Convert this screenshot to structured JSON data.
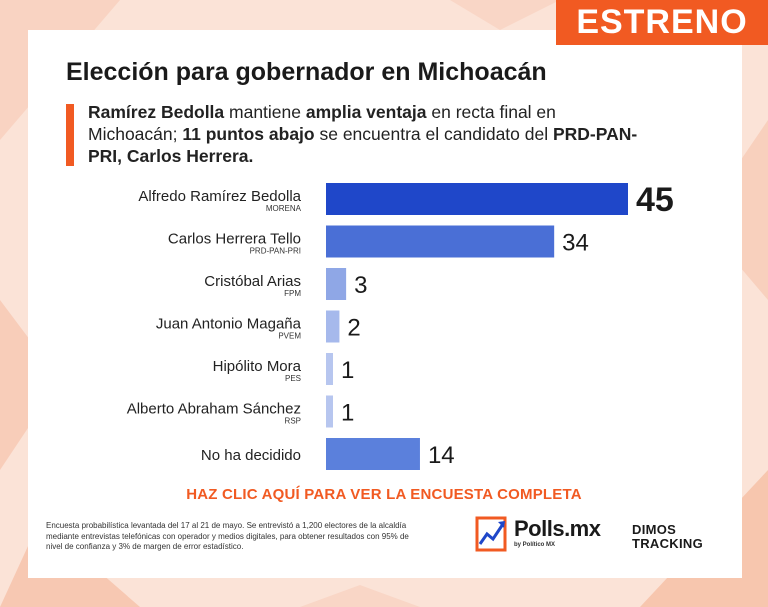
{
  "badge": "ESTRENO",
  "title": "Elección para gobernador en Michoacán",
  "subtitle": {
    "p1": "Ramírez Bedolla",
    "p2": " mantiene ",
    "p3": "amplia ventaja",
    "p4": " en recta final en Michoacán; ",
    "p5": "11 puntos abajo",
    "p6": " se encuentra el candidato del ",
    "p7": "PRD-PAN-PRI, Carlos Herrera."
  },
  "chart_data": {
    "type": "bar",
    "orientation": "horizontal",
    "categories": [
      {
        "name": "Alfredo Ramírez Bedolla",
        "party": "MORENA"
      },
      {
        "name": "Carlos Herrera Tello",
        "party": "PRD-PAN-PRI"
      },
      {
        "name": "Cristóbal Arias",
        "party": "FPM"
      },
      {
        "name": "Juan Antonio Magaña",
        "party": "PVEM"
      },
      {
        "name": "Hipólito Mora",
        "party": "PES"
      },
      {
        "name": "Alberto Abraham Sánchez",
        "party": "RSP"
      },
      {
        "name": "No ha decidido",
        "party": ""
      }
    ],
    "values": [
      45,
      34,
      3,
      2,
      1,
      1,
      14
    ],
    "colors": [
      "#1f47c9",
      "#4a6fd6",
      "#8fa7e6",
      "#a6b9ec",
      "#b7c6ef",
      "#b7c6ef",
      "#5b80dc"
    ],
    "title": "",
    "xlabel": "",
    "ylabel": "",
    "grid": false
  },
  "cta": "HAZ CLIC AQUÍ PARA VER LA ENCUESTA COMPLETA",
  "footnote": "Encuesta probabilística levantada del 17 al 21 de mayo. Se entrevistó a 1,200 electores de la alcaldía mediante entrevistas telefónicas con operador y medios digitales, para obtener resultados con 95% de nivel de confianza y 3% de margen de error estadístico.",
  "logos": {
    "polls": "Polls.mx",
    "polls_sub": "by Político MX",
    "dimos_line1": "DIMOS",
    "dimos_line2": "TRACKING"
  },
  "colors": {
    "accent": "#f15a22",
    "background": "#fbe3d7"
  }
}
